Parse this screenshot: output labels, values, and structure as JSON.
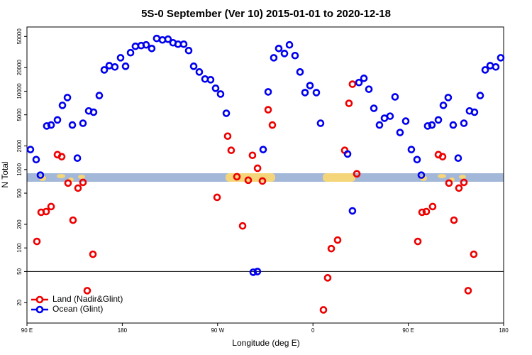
{
  "chart_data": {
    "type": "scatter",
    "title": "5S-0 September (Ver 10)   2015-01-01 to 2020-12-18",
    "x_label": "Longitude (deg E)",
    "y_label": "N Total",
    "xlim": [
      90,
      540
    ],
    "ylim": [
      11,
      66000
    ],
    "log_y": true,
    "legend": "lower left",
    "reference_line": 50,
    "xticks": [
      {
        "value": 90,
        "label": "90 E"
      },
      180,
      {
        "value": 270,
        "label": "90 W"
      },
      {
        "value": 360,
        "label": "0"
      },
      {
        "value": 450,
        "label": "90 E"
      },
      {
        "value": 540,
        "label": "180"
      }
    ],
    "yticks": [
      20,
      50,
      100,
      200,
      500,
      1000,
      2000,
      5000,
      10000,
      20000,
      50000
    ],
    "series": [
      {
        "name": "Land (Nadir&Glint)",
        "color": "#ee0000",
        "x": [
          99.4,
          103.4,
          108.1,
          112.8,
          118.8,
          122.8,
          128.8,
          133.5,
          138.2,
          142.9,
          146.9,
          152.3,
          269.5,
          279.5,
          282.8,
          288.2,
          293.6,
          298.9,
          302.9,
          307.7,
          312.3,
          317.7,
          321.7,
          369.9,
          373.9,
          377.3,
          383.3,
          390.0,
          394.0,
          397.3,
          401.4,
          459.0,
          463.0,
          467.0,
          473.0,
          478.4,
          482.4,
          488.4,
          493.1,
          497.8,
          502.5,
          506.5,
          511.8
        ],
        "values": [
          121,
          285,
          291,
          337,
          1550,
          1460,
          672,
          226,
          580,
          686,
          28.5,
          83,
          442,
          2670,
          1760,
          811,
          191,
          731,
          1520,
          1040,
          715,
          5800,
          3700,
          16.2,
          41.5,
          98,
          126,
          1760,
          7000,
          12300,
          882,
          121,
          285,
          291,
          337,
          1550,
          1460,
          672,
          226,
          580,
          686,
          28.5,
          83
        ]
      },
      {
        "name": "Ocean (Glint)",
        "color": "#0000ee",
        "x": [
          93.3,
          98.7,
          102.7,
          108.7,
          112.8,
          118.8,
          123.5,
          128.2,
          132.9,
          137.6,
          142.9,
          148.3,
          152.9,
          158.3,
          163.0,
          167.7,
          173.0,
          178.4,
          183.1,
          187.8,
          192.4,
          197.8,
          202.5,
          207.8,
          212.5,
          217.9,
          223.2,
          227.9,
          232.6,
          238.0,
          242.7,
          247.4,
          252.7,
          258.1,
          263.4,
          268.1,
          272.8,
          278.2,
          303.6,
          307.6,
          313.0,
          317.7,
          323.0,
          327.7,
          333.1,
          337.8,
          343.1,
          347.8,
          352.5,
          357.2,
          363.2,
          367.2,
          392.7,
          397.3,
          403.4,
          408.1,
          412.8,
          417.5,
          422.8,
          427.5,
          432.8,
          437.5,
          442.2,
          447.6,
          452.9,
          458.3,
          462.3,
          468.3,
          472.3,
          478.4,
          483.1,
          487.7,
          492.4,
          497.1,
          502.5,
          507.8,
          512.5,
          517.9,
          522.6,
          527.3,
          532.6,
          537.3
        ],
        "values": [
          1800,
          1340,
          850,
          3600,
          3700,
          4300,
          6600,
          8300,
          3700,
          1400,
          3900,
          5600,
          5400,
          8800,
          18700,
          21200,
          20400,
          26700,
          20800,
          31000,
          37400,
          38200,
          39000,
          35100,
          47100,
          45100,
          46100,
          41500,
          39800,
          39800,
          33000,
          20800,
          17600,
          14300,
          14000,
          10900,
          9200,
          5230,
          49,
          50,
          1800,
          9800,
          26700,
          35100,
          30300,
          39000,
          28500,
          17600,
          9600,
          11800,
          9600,
          3900,
          1580,
          297,
          12900,
          14600,
          10600,
          6050,
          3700,
          4520,
          4800,
          8460,
          2970,
          4150,
          1800,
          1340,
          850,
          3600,
          3700,
          4300,
          6600,
          8300,
          3700,
          1400,
          3900,
          5600,
          5400,
          8800,
          18700,
          21200,
          20400,
          26700
        ]
      }
    ]
  }
}
